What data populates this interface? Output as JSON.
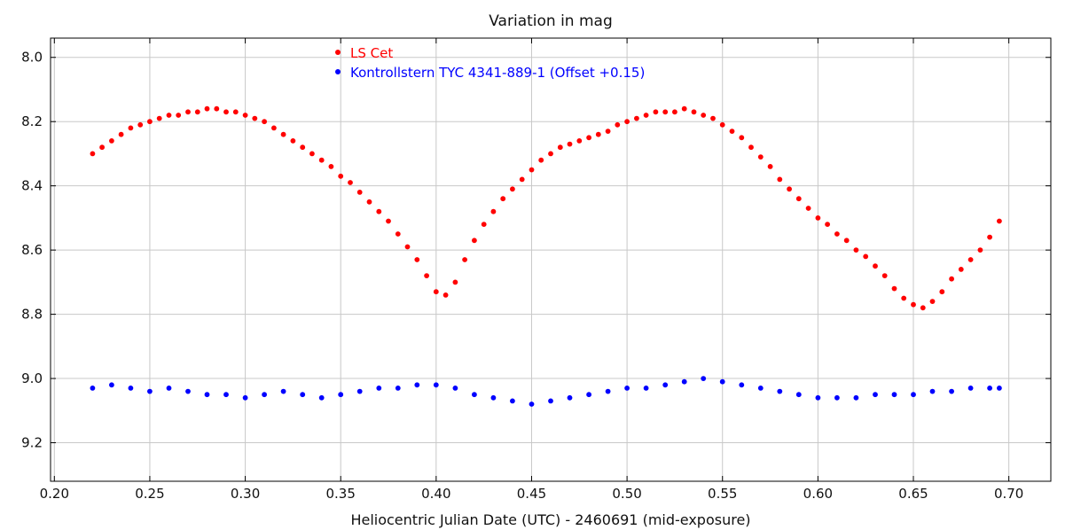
{
  "chart_data": {
    "type": "scatter",
    "title": "Variation in mag",
    "title_partial_top": "",
    "xlabel": "Heliocentric Julian Date (UTC) - 2460691 (mid-exposure)",
    "ylabel": "",
    "xlim": [
      0.198,
      0.722
    ],
    "ylim": [
      9.32,
      7.94
    ],
    "y_inverted": true,
    "grid": true,
    "legend_position": "top-center",
    "x_ticks": [
      0.2,
      0.25,
      0.3,
      0.35,
      0.4,
      0.45,
      0.5,
      0.55,
      0.6,
      0.65,
      0.7
    ],
    "x_tick_labels": [
      "0.20",
      "0.25",
      "0.30",
      "0.35",
      "0.40",
      "0.45",
      "0.50",
      "0.55",
      "0.60",
      "0.65",
      "0.70"
    ],
    "y_ticks": [
      8.0,
      8.2,
      8.4,
      8.6,
      8.8,
      9.0,
      9.2
    ],
    "y_tick_labels": [
      "8.0",
      "8.2",
      "8.4",
      "8.6",
      "8.8",
      "9.0",
      "9.2"
    ],
    "series": [
      {
        "name": "LS Cet",
        "color": "#ff0000",
        "x": [
          0.22,
          0.225,
          0.23,
          0.235,
          0.24,
          0.245,
          0.25,
          0.255,
          0.26,
          0.265,
          0.27,
          0.275,
          0.28,
          0.285,
          0.29,
          0.295,
          0.3,
          0.305,
          0.31,
          0.315,
          0.32,
          0.325,
          0.33,
          0.335,
          0.34,
          0.345,
          0.35,
          0.355,
          0.36,
          0.365,
          0.37,
          0.375,
          0.38,
          0.385,
          0.39,
          0.395,
          0.4,
          0.405,
          0.41,
          0.415,
          0.42,
          0.425,
          0.43,
          0.435,
          0.44,
          0.445,
          0.45,
          0.455,
          0.46,
          0.465,
          0.47,
          0.475,
          0.48,
          0.485,
          0.49,
          0.495,
          0.5,
          0.505,
          0.51,
          0.515,
          0.52,
          0.525,
          0.53,
          0.535,
          0.54,
          0.545,
          0.55,
          0.555,
          0.56,
          0.565,
          0.57,
          0.575,
          0.58,
          0.585,
          0.59,
          0.595,
          0.6,
          0.605,
          0.61,
          0.615,
          0.62,
          0.625,
          0.63,
          0.635,
          0.64,
          0.645,
          0.65,
          0.655,
          0.66,
          0.665,
          0.67,
          0.675,
          0.68,
          0.685,
          0.69,
          0.695
        ],
        "y": [
          8.3,
          8.28,
          8.26,
          8.24,
          8.22,
          8.21,
          8.2,
          8.19,
          8.18,
          8.18,
          8.17,
          8.17,
          8.16,
          8.16,
          8.17,
          8.17,
          8.18,
          8.19,
          8.2,
          8.22,
          8.24,
          8.26,
          8.28,
          8.3,
          8.32,
          8.34,
          8.37,
          8.39,
          8.42,
          8.45,
          8.48,
          8.51,
          8.55,
          8.59,
          8.63,
          8.68,
          8.73,
          8.74,
          8.7,
          8.63,
          8.57,
          8.52,
          8.48,
          8.44,
          8.41,
          8.38,
          8.35,
          8.32,
          8.3,
          8.28,
          8.27,
          8.26,
          8.25,
          8.24,
          8.23,
          8.21,
          8.2,
          8.19,
          8.18,
          8.17,
          8.17,
          8.17,
          8.16,
          8.17,
          8.18,
          8.19,
          8.21,
          8.23,
          8.25,
          8.28,
          8.31,
          8.34,
          8.38,
          8.41,
          8.44,
          8.47,
          8.5,
          8.52,
          8.55,
          8.57,
          8.6,
          8.62,
          8.65,
          8.68,
          8.72,
          8.75,
          8.77,
          8.78,
          8.76,
          8.73,
          8.69,
          8.66,
          8.63,
          8.6,
          8.56,
          8.51
        ]
      },
      {
        "name": "Kontrollstern TYC 4341-889-1 (Offset +0.15)",
        "color": "#0000ff",
        "x": [
          0.22,
          0.23,
          0.24,
          0.25,
          0.26,
          0.27,
          0.28,
          0.29,
          0.3,
          0.31,
          0.32,
          0.33,
          0.34,
          0.35,
          0.36,
          0.37,
          0.38,
          0.39,
          0.4,
          0.41,
          0.42,
          0.43,
          0.44,
          0.45,
          0.46,
          0.47,
          0.48,
          0.49,
          0.5,
          0.51,
          0.52,
          0.53,
          0.54,
          0.55,
          0.56,
          0.57,
          0.58,
          0.59,
          0.6,
          0.61,
          0.62,
          0.63,
          0.64,
          0.65,
          0.66,
          0.67,
          0.68,
          0.69,
          0.695
        ],
        "y": [
          9.03,
          9.02,
          9.03,
          9.04,
          9.03,
          9.04,
          9.05,
          9.05,
          9.06,
          9.05,
          9.04,
          9.05,
          9.06,
          9.05,
          9.04,
          9.03,
          9.03,
          9.02,
          9.02,
          9.03,
          9.05,
          9.06,
          9.07,
          9.08,
          9.07,
          9.06,
          9.05,
          9.04,
          9.03,
          9.03,
          9.02,
          9.01,
          9.0,
          9.01,
          9.02,
          9.03,
          9.04,
          9.05,
          9.06,
          9.06,
          9.06,
          9.05,
          9.05,
          9.05,
          9.04,
          9.04,
          9.03,
          9.03,
          9.03
        ]
      }
    ]
  }
}
